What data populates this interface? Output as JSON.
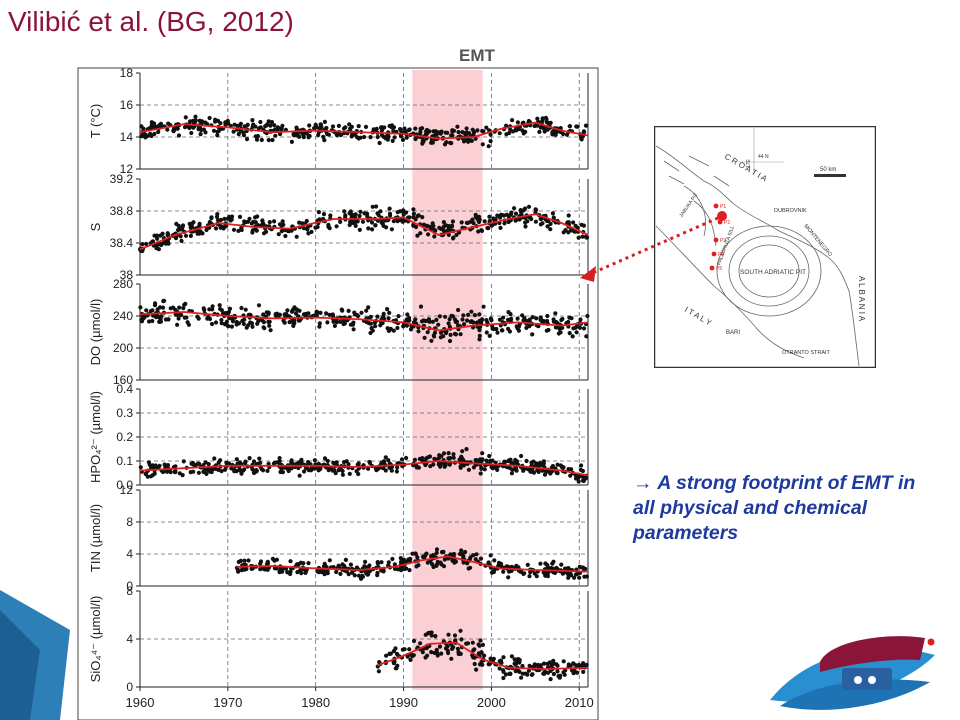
{
  "slide": {
    "title": "Vilibić et al. (BG, 2012)",
    "note_arrow": "→",
    "note": "A strong footprint of EMT in all physical and chemical parameters"
  },
  "chart_data": {
    "type": "scatter",
    "highlight": {
      "label": "EMT",
      "range": [
        1991,
        1999
      ],
      "color": "#f9c0c7"
    },
    "x_ticks": [
      1960,
      1970,
      1980,
      1990,
      2000,
      2010
    ],
    "xlim": [
      1960,
      2011
    ],
    "panels": [
      {
        "name": "T",
        "ylabel": "T (°C)",
        "ylim": [
          12,
          18
        ],
        "yticks": [
          12,
          14,
          16,
          18
        ],
        "base": 14.3,
        "noise": 0.5,
        "start": 1960,
        "trend": [
          [
            1960,
            14.3
          ],
          [
            1965,
            14.8
          ],
          [
            1970,
            14.6
          ],
          [
            1975,
            14.3
          ],
          [
            1980,
            14.4
          ],
          [
            1985,
            14.3
          ],
          [
            1990,
            14.2
          ],
          [
            1994,
            13.9
          ],
          [
            1998,
            14.0
          ],
          [
            2001,
            14.5
          ],
          [
            2005,
            14.9
          ],
          [
            2008,
            14.4
          ],
          [
            2011,
            14.1
          ]
        ]
      },
      {
        "name": "S",
        "ylabel": "S",
        "ylim": [
          38,
          39.2
        ],
        "yticks": [
          38,
          38.4,
          38.8,
          39.2
        ],
        "base": 38.6,
        "noise": 0.12,
        "start": 1960,
        "trend": [
          [
            1960,
            38.32
          ],
          [
            1964,
            38.5
          ],
          [
            1969,
            38.65
          ],
          [
            1973,
            38.6
          ],
          [
            1977,
            38.58
          ],
          [
            1982,
            38.7
          ],
          [
            1987,
            38.7
          ],
          [
            1990,
            38.72
          ],
          [
            1994,
            38.5
          ],
          [
            1998,
            38.6
          ],
          [
            2002,
            38.7
          ],
          [
            2005,
            38.76
          ],
          [
            2008,
            38.65
          ],
          [
            2011,
            38.5
          ]
        ]
      },
      {
        "name": "DO",
        "ylabel": "DO (µmol/l)",
        "ylim": [
          160,
          280
        ],
        "yticks": [
          160,
          200,
          240,
          280
        ],
        "base": 238,
        "noise": 14,
        "start": 1960,
        "trend": [
          [
            1960,
            242
          ],
          [
            1965,
            245
          ],
          [
            1970,
            240
          ],
          [
            1975,
            237
          ],
          [
            1980,
            238
          ],
          [
            1985,
            236
          ],
          [
            1990,
            232
          ],
          [
            1994,
            222
          ],
          [
            1998,
            228
          ],
          [
            2003,
            232
          ],
          [
            2008,
            228
          ],
          [
            2011,
            232
          ]
        ]
      },
      {
        "name": "HPO4",
        "ylabel": "HPO₄²⁻ (µmol/l)",
        "ylim": [
          0,
          0.4
        ],
        "yticks": [
          0,
          0.1,
          0.2,
          0.3,
          0.4
        ],
        "ytick_labels": [
          "0.0",
          "0.1",
          "0.2",
          "0.3",
          "0.4"
        ],
        "base": 0.07,
        "noise": 0.03,
        "start": 1960,
        "trend": [
          [
            1960,
            0.06
          ],
          [
            1965,
            0.07
          ],
          [
            1970,
            0.08
          ],
          [
            1975,
            0.08
          ],
          [
            1980,
            0.08
          ],
          [
            1985,
            0.075
          ],
          [
            1990,
            0.085
          ],
          [
            1994,
            0.1
          ],
          [
            1998,
            0.09
          ],
          [
            2003,
            0.08
          ],
          [
            2008,
            0.06
          ],
          [
            2011,
            0.04
          ]
        ]
      },
      {
        "name": "TIN",
        "ylabel": "TIN (µmol/l)",
        "ylim": [
          0,
          12
        ],
        "yticks": [
          0,
          4,
          8,
          12
        ],
        "base": 2.4,
        "noise": 0.9,
        "start": 1971,
        "trend": [
          [
            1971,
            2.4
          ],
          [
            1975,
            2.5
          ],
          [
            1980,
            2.2
          ],
          [
            1985,
            2.0
          ],
          [
            1989,
            2.4
          ],
          [
            1992,
            3.2
          ],
          [
            1995,
            3.7
          ],
          [
            1998,
            3.0
          ],
          [
            2001,
            2.2
          ],
          [
            2005,
            2.0
          ],
          [
            2011,
            1.8
          ]
        ]
      },
      {
        "name": "SiO4",
        "ylabel": "SiO₄⁴⁻ (µmol/l)",
        "ylim": [
          0,
          8
        ],
        "yticks": [
          0,
          4,
          8
        ],
        "base": 2.0,
        "noise": 0.9,
        "start": 1987,
        "trend": [
          [
            1987,
            1.8
          ],
          [
            1990,
            2.6
          ],
          [
            1993,
            3.6
          ],
          [
            1996,
            3.7
          ],
          [
            1999,
            2.3
          ],
          [
            2002,
            1.6
          ],
          [
            2006,
            1.5
          ],
          [
            2011,
            1.6
          ]
        ]
      }
    ]
  },
  "map": {
    "labels": {
      "croatia": "C R O A T I A",
      "jabuka": "JABUKA PIT",
      "dubrovnik": "DUBROVNIK",
      "montenegro": "MONTENEGRO",
      "palagruza": "PALAGRUŽA SILL",
      "pit": "SOUTH ADRIATIC PIT",
      "italy": "I T A L Y",
      "bari": "BARI",
      "otranto": "OTRANTO STRAIT",
      "albania": "A L B A N I A",
      "scale": "50 km",
      "lat": "44 N",
      "lon": "17E",
      "stations": [
        "P1",
        "P2",
        "P3",
        "P4",
        "P5"
      ]
    }
  }
}
